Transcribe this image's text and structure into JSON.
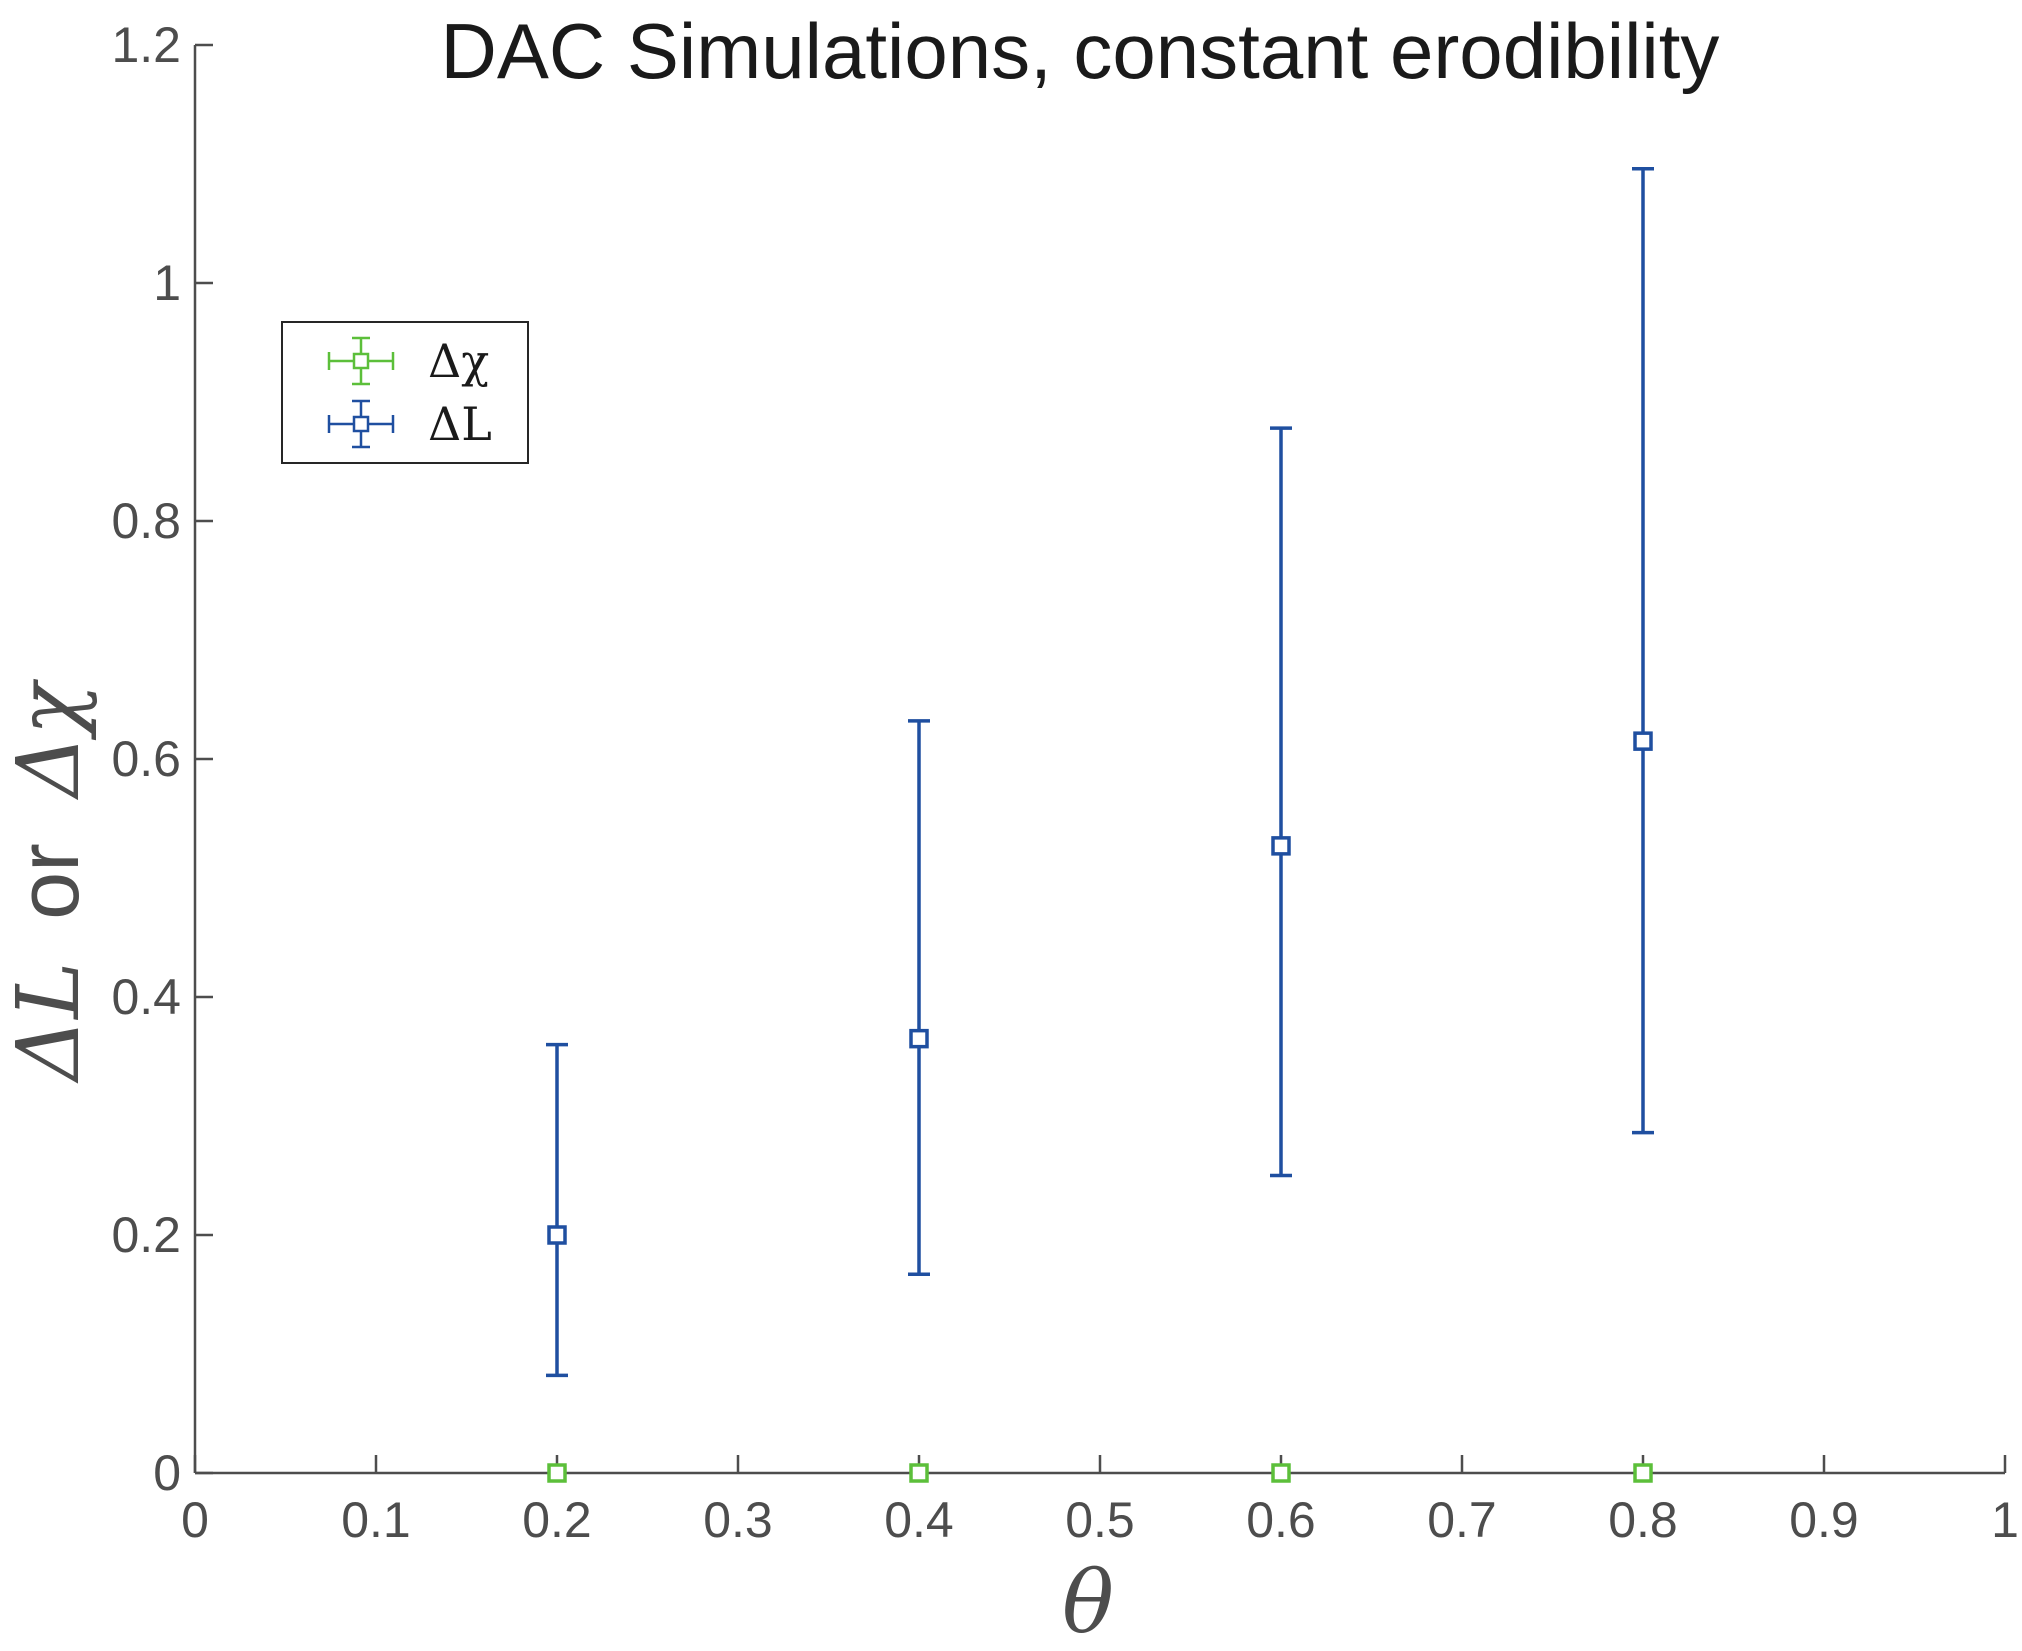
{
  "chart_data": {
    "type": "scatter",
    "title": "DAC Simulations, constant erodibility",
    "xlabel": "θ",
    "ylabel": {
      "first_symbol": "ΔL",
      "connector": "or",
      "second_symbol": "Δχ"
    },
    "xlim": [
      0,
      1
    ],
    "ylim": [
      0,
      1.2
    ],
    "x_ticks": [
      "0",
      "0.1",
      "0.2",
      "0.3",
      "0.4",
      "0.5",
      "0.6",
      "0.7",
      "0.8",
      "0.9",
      "1"
    ],
    "y_ticks": [
      "0",
      "0.2",
      "0.4",
      "0.6",
      "0.8",
      "1",
      "1.2"
    ],
    "grid": false,
    "legend_position": "top-left",
    "series": [
      {
        "name": "Δχ",
        "color": "#5cbf3a",
        "marker": "square",
        "x": [
          0.2,
          0.4,
          0.6,
          0.8
        ],
        "y": [
          0,
          0,
          0,
          0
        ],
        "err_low": [
          0,
          0,
          0,
          0
        ],
        "err_high": [
          0,
          0,
          0,
          0
        ]
      },
      {
        "name": "ΔL",
        "color": "#1f4fa0",
        "marker": "square",
        "x": [
          0.2,
          0.4,
          0.6,
          0.8
        ],
        "y": [
          0.2,
          0.365,
          0.527,
          0.615
        ],
        "err_low": [
          0.082,
          0.167,
          0.25,
          0.286
        ],
        "err_high": [
          0.36,
          0.632,
          0.878,
          1.096
        ]
      }
    ]
  }
}
